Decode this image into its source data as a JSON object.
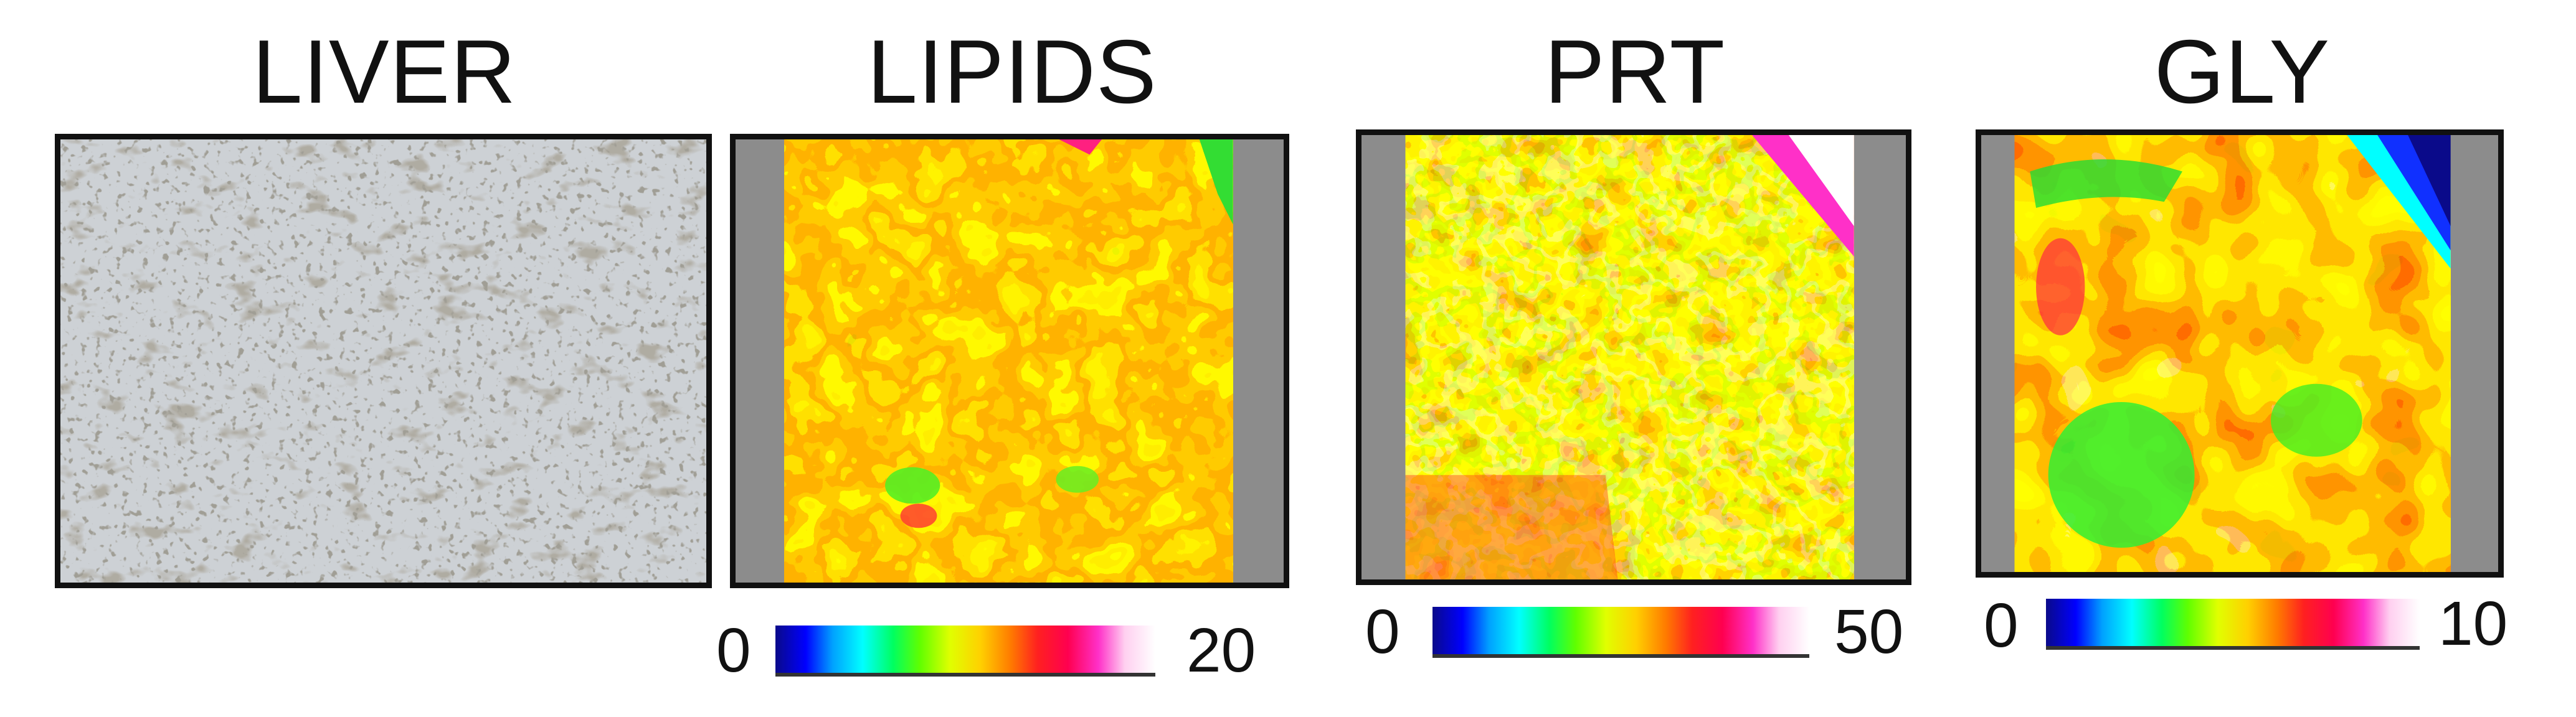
{
  "panels": [
    {
      "id": "liver",
      "title": "LIVER"
    },
    {
      "id": "lipids",
      "title": "LIPIDS",
      "scale_min": "0",
      "scale_max": "20"
    },
    {
      "id": "prt",
      "title": "PRT",
      "scale_min": "0",
      "scale_max": "50"
    },
    {
      "id": "gly",
      "title": "GLY",
      "scale_min": "0",
      "scale_max": "10"
    }
  ],
  "colormap": [
    "#0a0a8a",
    "#0000ff",
    "#00a0ff",
    "#00ffff",
    "#00ff60",
    "#60ff00",
    "#e0ff00",
    "#ffd000",
    "#ff7a00",
    "#ff2020",
    "#ff0050",
    "#ff30c8",
    "#ffd0f0",
    "#ffffff"
  ],
  "colors": {
    "border": "#111111",
    "mask_gray": "#8c8c8c",
    "tissue_bg": "#c9cdd1",
    "tissue_spots": "#6e6a5e"
  }
}
